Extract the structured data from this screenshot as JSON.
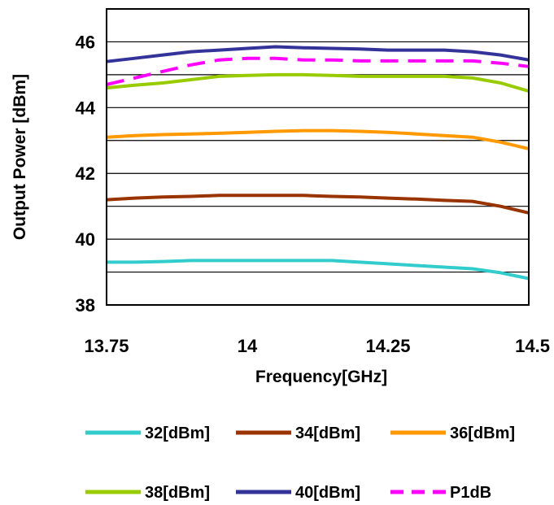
{
  "chart_data": {
    "type": "line",
    "title": "",
    "xlabel": "Frequency[GHz]",
    "ylabel": "Output Power [dBm]",
    "xlim": [
      13.75,
      14.5
    ],
    "ylim": [
      38,
      47
    ],
    "x_ticks": [
      13.75,
      14,
      14.25,
      14.5
    ],
    "x_tick_labels": [
      "13.75",
      "14",
      "14.25",
      "14.5"
    ],
    "y_ticks": [
      38,
      40,
      42,
      44,
      46
    ],
    "y_tick_labels": [
      "38",
      "40",
      "42",
      "44",
      "46"
    ],
    "grid": true,
    "legend_position": "bottom",
    "series": [
      {
        "name": "32[dBm]",
        "color": "#33CCCC",
        "dash": "solid",
        "x": [
          13.75,
          13.8,
          13.85,
          13.9,
          13.95,
          14.0,
          14.05,
          14.1,
          14.15,
          14.2,
          14.25,
          14.3,
          14.35,
          14.4,
          14.45,
          14.5
        ],
        "y": [
          39.3,
          39.3,
          39.32,
          39.35,
          39.35,
          39.35,
          39.35,
          39.35,
          39.35,
          39.3,
          39.25,
          39.2,
          39.15,
          39.1,
          38.98,
          38.8
        ]
      },
      {
        "name": "34[dBm]",
        "color": "#993300",
        "dash": "solid",
        "x": [
          13.75,
          13.8,
          13.85,
          13.9,
          13.95,
          14.0,
          14.05,
          14.1,
          14.15,
          14.2,
          14.25,
          14.3,
          14.35,
          14.4,
          14.45,
          14.5
        ],
        "y": [
          41.2,
          41.25,
          41.28,
          41.3,
          41.33,
          41.33,
          41.33,
          41.33,
          41.3,
          41.28,
          41.25,
          41.22,
          41.18,
          41.15,
          41.0,
          40.8
        ]
      },
      {
        "name": "36[dBm]",
        "color": "#FF9900",
        "dash": "solid",
        "x": [
          13.75,
          13.8,
          13.85,
          13.9,
          13.95,
          14.0,
          14.05,
          14.1,
          14.15,
          14.2,
          14.25,
          14.3,
          14.35,
          14.4,
          14.45,
          14.5
        ],
        "y": [
          43.1,
          43.15,
          43.18,
          43.2,
          43.22,
          43.25,
          43.28,
          43.3,
          43.3,
          43.28,
          43.25,
          43.2,
          43.15,
          43.1,
          42.95,
          42.75
        ]
      },
      {
        "name": "38[dBm]",
        "color": "#99CC00",
        "dash": "solid",
        "x": [
          13.75,
          13.8,
          13.85,
          13.9,
          13.95,
          14.0,
          14.05,
          14.1,
          14.15,
          14.2,
          14.25,
          14.3,
          14.35,
          14.4,
          14.45,
          14.5
        ],
        "y": [
          44.6,
          44.68,
          44.75,
          44.85,
          44.95,
          44.98,
          45.0,
          45.0,
          44.98,
          44.95,
          44.95,
          44.95,
          44.95,
          44.9,
          44.75,
          44.5
        ]
      },
      {
        "name": "40[dBm]",
        "color": "#333399",
        "dash": "solid",
        "x": [
          13.75,
          13.8,
          13.85,
          13.9,
          13.95,
          14.0,
          14.05,
          14.1,
          14.15,
          14.2,
          14.25,
          14.3,
          14.35,
          14.4,
          14.45,
          14.5
        ],
        "y": [
          45.4,
          45.5,
          45.6,
          45.7,
          45.75,
          45.8,
          45.85,
          45.82,
          45.8,
          45.78,
          45.75,
          45.75,
          45.75,
          45.7,
          45.6,
          45.45
        ]
      },
      {
        "name": "P1dB",
        "color": "#FF00FF",
        "dash": "dashed",
        "x": [
          13.75,
          13.8,
          13.85,
          13.9,
          13.95,
          14.0,
          14.05,
          14.1,
          14.15,
          14.2,
          14.25,
          14.3,
          14.35,
          14.4,
          14.45,
          14.5
        ],
        "y": [
          44.7,
          44.9,
          45.1,
          45.3,
          45.45,
          45.5,
          45.5,
          45.45,
          45.45,
          45.42,
          45.42,
          45.42,
          45.42,
          45.42,
          45.35,
          45.25
        ]
      }
    ]
  }
}
